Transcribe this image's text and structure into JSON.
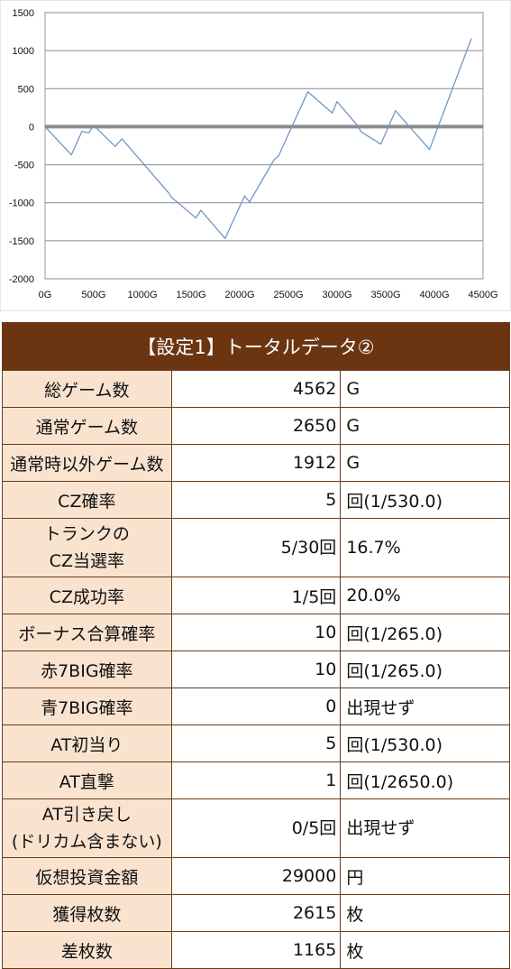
{
  "chart_data": {
    "type": "line",
    "ylim": [
      -2000,
      1500
    ],
    "xlim": [
      0,
      4500
    ],
    "yticks": [
      1500,
      1000,
      500,
      0,
      -500,
      -1000,
      -1500,
      -2000
    ],
    "xtick_labels": [
      "0G",
      "500G",
      "1000G",
      "1500G",
      "2000G",
      "2500G",
      "3000G",
      "3500G",
      "4000G",
      "4500G"
    ],
    "xtick_values": [
      0,
      500,
      1000,
      1500,
      2000,
      2500,
      3000,
      3500,
      4000,
      4500
    ],
    "grid": true,
    "series": [
      {
        "color": "#6f97c6",
        "x": [
          0,
          270,
          380,
          450,
          500,
          600,
          720,
          790,
          1270,
          1300,
          1550,
          1600,
          1850,
          2050,
          2100,
          2350,
          2400,
          2700,
          2950,
          3000,
          3200,
          3250,
          3450,
          3600,
          3950,
          4380
        ],
        "y": [
          0,
          -370,
          -60,
          -80,
          20,
          -110,
          -260,
          -160,
          -870,
          -930,
          -1200,
          -1100,
          -1470,
          -910,
          -990,
          -440,
          -380,
          460,
          180,
          330,
          30,
          -70,
          -230,
          210,
          -300,
          1160
        ]
      }
    ],
    "baseline": {
      "value": 0,
      "color": "#8c8c8c"
    }
  },
  "table": {
    "title": "【設定1】トータルデータ②",
    "rows": [
      {
        "label": [
          "総ゲーム数"
        ],
        "value": "4562",
        "unit": "G"
      },
      {
        "label": [
          "通常ゲーム数"
        ],
        "value": "2650",
        "unit": "G"
      },
      {
        "label": [
          "通常時以外ゲーム数"
        ],
        "value": "1912",
        "unit": "G"
      },
      {
        "label": [
          "CZ確率"
        ],
        "value": "5",
        "unit": "回(1/530.0)"
      },
      {
        "label": [
          "トランクの",
          "CZ当選率"
        ],
        "value": "5/30回",
        "unit": "16.7%"
      },
      {
        "label": [
          "CZ成功率"
        ],
        "value": "1/5回",
        "unit": "20.0%"
      },
      {
        "label": [
          "ボーナス合算確率"
        ],
        "value": "10",
        "unit": "回(1/265.0)"
      },
      {
        "label": [
          "赤7BIG確率"
        ],
        "value": "10",
        "unit": "回(1/265.0)"
      },
      {
        "label": [
          "青7BIG確率"
        ],
        "value": "0",
        "unit": "出現せず"
      },
      {
        "label": [
          "AT初当り"
        ],
        "value": "5",
        "unit": "回(1/530.0)"
      },
      {
        "label": [
          "AT直撃"
        ],
        "value": "1",
        "unit": "回(1/2650.0)"
      },
      {
        "label": [
          "AT引き戻し",
          "(ドリカム含まない)"
        ],
        "value": "0/5回",
        "unit": "出現せず"
      },
      {
        "label": [
          "仮想投資金額"
        ],
        "value": "29000",
        "unit": "円"
      },
      {
        "label": [
          "獲得枚数"
        ],
        "value": "2615",
        "unit": "枚"
      },
      {
        "label": [
          "差枚数"
        ],
        "value": "1165",
        "unit": "枚"
      }
    ]
  }
}
